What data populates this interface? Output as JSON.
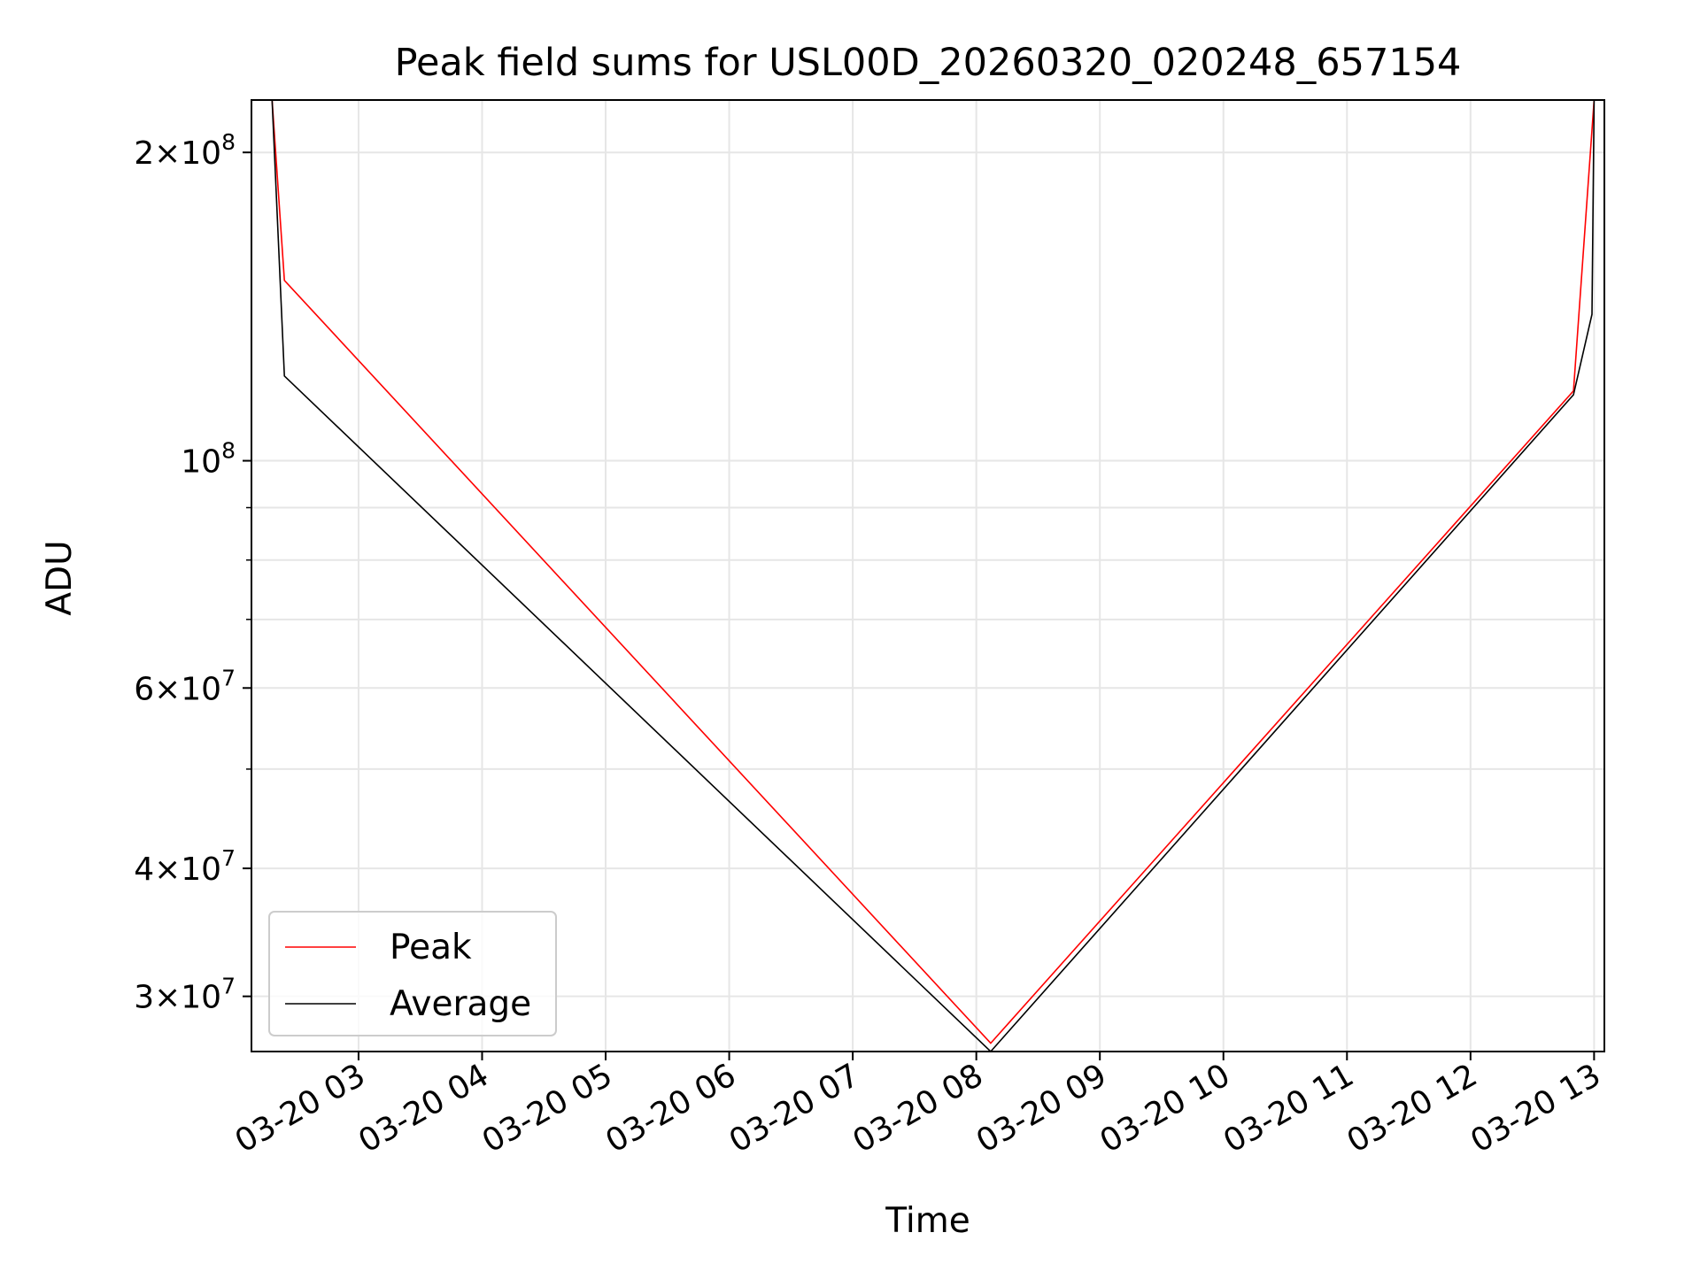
{
  "chart_data": {
    "type": "line",
    "title": "Peak field sums for USL00D_20260320_020248_657154",
    "xlabel": "Time",
    "ylabel": "ADU",
    "y_scale": "log",
    "ylim": [
      26500000,
      225000000
    ],
    "xlim": [
      "2026-03-20 02:08",
      "2026-03-20 13:05"
    ],
    "grid": true,
    "legend_position": "lower left",
    "x_ticks": [
      {
        "value": "2026-03-20 03:00",
        "label": "03-20 03"
      },
      {
        "value": "2026-03-20 04:00",
        "label": "03-20 04"
      },
      {
        "value": "2026-03-20 05:00",
        "label": "03-20 05"
      },
      {
        "value": "2026-03-20 06:00",
        "label": "03-20 06"
      },
      {
        "value": "2026-03-20 07:00",
        "label": "03-20 07"
      },
      {
        "value": "2026-03-20 08:00",
        "label": "03-20 08"
      },
      {
        "value": "2026-03-20 09:00",
        "label": "03-20 09"
      },
      {
        "value": "2026-03-20 10:00",
        "label": "03-20 10"
      },
      {
        "value": "2026-03-20 11:00",
        "label": "03-20 11"
      },
      {
        "value": "2026-03-20 12:00",
        "label": "03-20 12"
      },
      {
        "value": "2026-03-20 13:00",
        "label": "03-20 13"
      }
    ],
    "y_major_ticks": [
      {
        "value": 30000000,
        "mantissa": "3",
        "exp": "7"
      },
      {
        "value": 40000000,
        "mantissa": "4",
        "exp": "7"
      },
      {
        "value": 60000000,
        "mantissa": "6",
        "exp": "7"
      },
      {
        "value": 100000000,
        "mantissa": "",
        "exp": "8"
      },
      {
        "value": 200000000,
        "mantissa": "2",
        "exp": "8"
      }
    ],
    "y_minor_ticks": [
      50000000,
      70000000,
      80000000,
      90000000
    ],
    "series": [
      {
        "name": "Peak",
        "color": "#ff0000",
        "points": [
          {
            "x": "2026-03-20 02:18",
            "y": 225000000
          },
          {
            "x": "2026-03-20 02:24",
            "y": 150000000
          },
          {
            "x": "2026-03-20 08:07",
            "y": 27000000
          },
          {
            "x": "2026-03-20 12:50",
            "y": 117000000
          },
          {
            "x": "2026-03-20 13:00",
            "y": 225000000
          }
        ]
      },
      {
        "name": "Average",
        "color": "#000000",
        "points": [
          {
            "x": "2026-03-20 02:18",
            "y": 225000000
          },
          {
            "x": "2026-03-20 02:24",
            "y": 121000000
          },
          {
            "x": "2026-03-20 08:07",
            "y": 26500000
          },
          {
            "x": "2026-03-20 12:50",
            "y": 116000000
          },
          {
            "x": "2026-03-20 12:59",
            "y": 139000000
          },
          {
            "x": "2026-03-20 13:00",
            "y": 225000000
          }
        ]
      }
    ]
  }
}
